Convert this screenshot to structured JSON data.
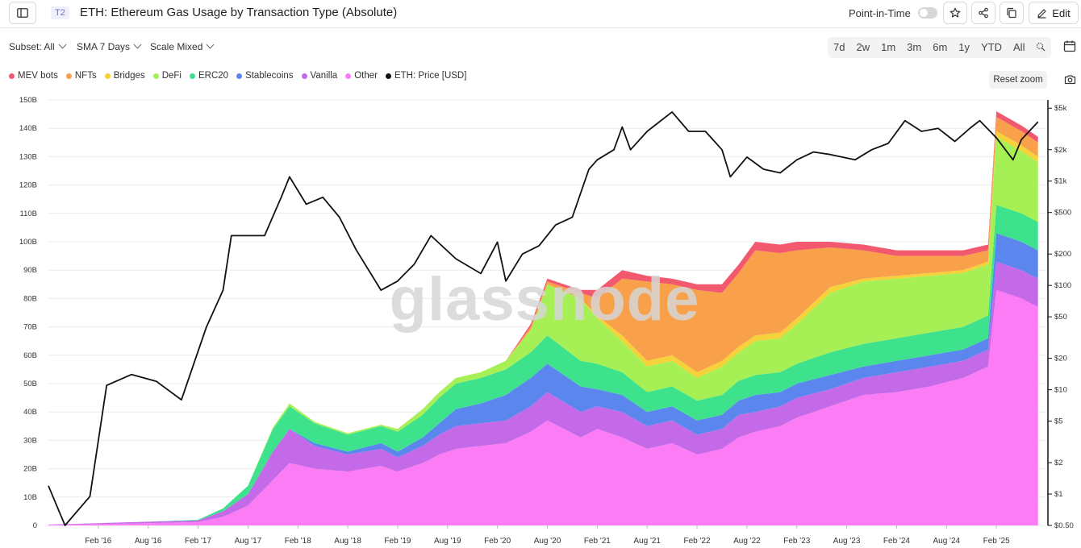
{
  "header": {
    "tier_badge": "T2",
    "title": "ETH: Ethereum Gas Usage by Transaction Type (Absolute)",
    "point_in_time_label": "Point-in-Time",
    "point_in_time_on": false,
    "edit_label": "Edit",
    "icons": [
      "sidebar-toggle-icon",
      "star-icon",
      "share-icon",
      "copy-icon",
      "pencil-icon"
    ]
  },
  "controls": {
    "subset": "Subset: All",
    "sma": "SMA 7 Days",
    "scale": "Scale Mixed",
    "ranges": [
      "7d",
      "2w",
      "1m",
      "3m",
      "6m",
      "1y",
      "YTD",
      "All"
    ],
    "reset_zoom": "Reset zoom"
  },
  "colors": {
    "mev_bots": "#f3596e",
    "nfts": "#f9a04a",
    "bridges": "#f6d23a",
    "defi": "#a6ef55",
    "erc20": "#3ee28d",
    "stablecoins": "#5b86ee",
    "vanilla": "#c46ae8",
    "other": "#fb7cf4",
    "price": "#111111"
  },
  "watermark": "glassnode",
  "chart_data": {
    "type": "area",
    "stacked": true,
    "legend": [
      "MEV bots",
      "NFTs",
      "Bridges",
      "DeFi",
      "ERC20",
      "Stablecoins",
      "Vanilla",
      "Other",
      "ETH: Price [USD]"
    ],
    "legend_placement": "top-left",
    "x": [
      "2015-08",
      "2016-02",
      "2016-08",
      "2017-02",
      "2017-05",
      "2017-08",
      "2017-11",
      "2018-01",
      "2018-04",
      "2018-08",
      "2018-12",
      "2019-02",
      "2019-05",
      "2019-07",
      "2019-09",
      "2019-12",
      "2020-03",
      "2020-06",
      "2020-08",
      "2020-12",
      "2021-02",
      "2021-05",
      "2021-08",
      "2021-11",
      "2022-02",
      "2022-05",
      "2022-07",
      "2022-09",
      "2022-12",
      "2023-02",
      "2023-06",
      "2023-10",
      "2024-02",
      "2024-06",
      "2024-10",
      "2025-01",
      "2025-02",
      "2025-05",
      "2025-07"
    ],
    "series": [
      {
        "name": "Other",
        "values": [
          0.2,
          0.5,
          0.8,
          1.2,
          3,
          7,
          16,
          22,
          20,
          19,
          21,
          19,
          22,
          25,
          27,
          28,
          29,
          33,
          37,
          31,
          34,
          31,
          27,
          29,
          25,
          27,
          31,
          33,
          35,
          38,
          42,
          46,
          47,
          49,
          52,
          56,
          83,
          80,
          77
        ]
      },
      {
        "name": "Vanilla",
        "values": [
          0.1,
          0.3,
          0.5,
          0.6,
          2,
          4,
          10,
          12,
          8,
          6,
          6,
          5,
          6,
          7,
          8,
          8,
          8,
          9,
          10,
          9,
          8,
          9,
          8,
          8,
          7,
          7,
          8,
          7,
          7,
          7,
          6,
          6,
          7,
          7,
          6,
          6,
          10,
          10,
          10
        ]
      },
      {
        "name": "Stablecoins",
        "values": [
          0,
          0,
          0,
          0,
          0,
          0,
          0,
          0,
          1,
          1,
          2,
          2,
          3,
          4,
          6,
          7,
          9,
          10,
          10,
          9,
          6,
          6,
          5,
          5,
          5,
          5,
          5,
          6,
          5,
          5,
          5,
          4,
          4,
          4,
          4,
          4,
          10,
          10,
          10
        ]
      },
      {
        "name": "ERC20",
        "values": [
          0,
          0,
          0,
          0.2,
          1,
          3,
          8,
          8,
          7,
          6,
          6,
          7,
          8,
          9,
          9,
          9,
          9,
          9,
          10,
          9,
          9,
          8,
          7,
          7,
          7,
          7,
          7,
          7,
          7,
          7,
          8,
          8,
          8,
          8,
          8,
          8,
          10,
          10,
          10
        ]
      },
      {
        "name": "DeFi",
        "values": [
          0,
          0,
          0,
          0,
          0,
          0,
          0.5,
          1,
          0.5,
          0.5,
          0.5,
          1,
          2,
          2,
          2,
          2,
          3,
          8,
          18,
          22,
          16,
          11,
          9,
          9,
          8,
          10,
          10,
          12,
          12,
          14,
          21,
          22,
          21,
          20,
          19,
          18,
          24,
          22,
          21
        ]
      },
      {
        "name": "Bridges",
        "values": [
          0,
          0,
          0,
          0,
          0,
          0,
          0,
          0,
          0,
          0,
          0,
          0,
          0,
          0,
          0,
          0,
          0,
          0,
          0,
          0,
          1,
          2,
          2,
          2,
          2,
          2,
          2,
          2,
          2,
          2,
          2,
          1,
          1,
          1,
          1,
          1,
          2,
          2,
          2
        ]
      },
      {
        "name": "NFTs",
        "values": [
          0,
          0,
          0,
          0,
          0,
          0,
          0,
          0,
          0,
          0,
          0,
          0,
          0,
          0,
          0,
          0,
          0,
          1,
          1,
          2,
          6,
          20,
          28,
          25,
          29,
          24,
          26,
          30,
          28,
          24,
          14,
          10,
          7,
          6,
          5,
          4,
          5,
          5,
          5
        ]
      },
      {
        "name": "MEV bots",
        "values": [
          0,
          0,
          0,
          0,
          0,
          0,
          0,
          0,
          0,
          0,
          0,
          0,
          0,
          0,
          0,
          0,
          0,
          1,
          1,
          1,
          3,
          3,
          2,
          2,
          2,
          3,
          3,
          3,
          3,
          3,
          2,
          2,
          2,
          2,
          2,
          2,
          2,
          2,
          2
        ]
      }
    ],
    "price_series": {
      "name": "ETH: Price [USD]",
      "x": [
        "2015-08",
        "2015-10",
        "2016-01",
        "2016-03",
        "2016-06",
        "2016-09",
        "2016-12",
        "2017-03",
        "2017-05",
        "2017-06",
        "2017-08",
        "2017-10",
        "2017-12",
        "2018-01",
        "2018-03",
        "2018-05",
        "2018-07",
        "2018-09",
        "2018-12",
        "2019-02",
        "2019-04",
        "2019-06",
        "2019-09",
        "2019-12",
        "2020-02",
        "2020-03",
        "2020-05",
        "2020-07",
        "2020-09",
        "2020-11",
        "2021-01",
        "2021-02",
        "2021-04",
        "2021-05",
        "2021-06",
        "2021-08",
        "2021-11",
        "2022-01",
        "2022-03",
        "2022-05",
        "2022-06",
        "2022-08",
        "2022-10",
        "2022-12",
        "2023-02",
        "2023-04",
        "2023-06",
        "2023-09",
        "2023-11",
        "2024-01",
        "2024-03",
        "2024-05",
        "2024-07",
        "2024-09",
        "2024-11",
        "2024-12",
        "2025-02",
        "2025-04",
        "2025-05",
        "2025-07"
      ],
      "values": [
        1.2,
        0.5,
        0.95,
        11,
        14,
        12,
        8,
        40,
        90,
        300,
        300,
        300,
        700,
        1100,
        600,
        700,
        450,
        220,
        90,
        110,
        160,
        300,
        180,
        130,
        260,
        110,
        200,
        240,
        380,
        450,
        1300,
        1600,
        2000,
        3300,
        2000,
        3000,
        4600,
        3000,
        3000,
        2000,
        1100,
        1700,
        1300,
        1200,
        1600,
        1900,
        1800,
        1600,
        2000,
        2300,
        3800,
        3000,
        3200,
        2400,
        3300,
        3800,
        2600,
        1600,
        2500,
        3700
      ]
    },
    "y_left": {
      "ticks": [
        "0",
        "10B",
        "20B",
        "30B",
        "40B",
        "50B",
        "60B",
        "70B",
        "80B",
        "90B",
        "100B",
        "110B",
        "120B",
        "130B",
        "140B",
        "150B"
      ],
      "range": [
        0,
        150000000000
      ]
    },
    "y_right": {
      "scale": "log",
      "ticks": [
        "$0.50",
        "$1",
        "$2",
        "$5",
        "$10",
        "$20",
        "$50",
        "$100",
        "$200",
        "$500",
        "$1k",
        "$2k",
        "$5k"
      ],
      "range": [
        0.5,
        6000
      ]
    },
    "x_ticks": [
      "Feb '16",
      "Aug '16",
      "Feb '17",
      "Aug '17",
      "Feb '18",
      "Aug '18",
      "Feb '19",
      "Aug '19",
      "Feb '20",
      "Aug '20",
      "Feb '21",
      "Aug '21",
      "Feb '22",
      "Aug '22",
      "Feb '23",
      "Aug '23",
      "Feb '24",
      "Aug '24",
      "Feb '25"
    ],
    "grid": true
  }
}
